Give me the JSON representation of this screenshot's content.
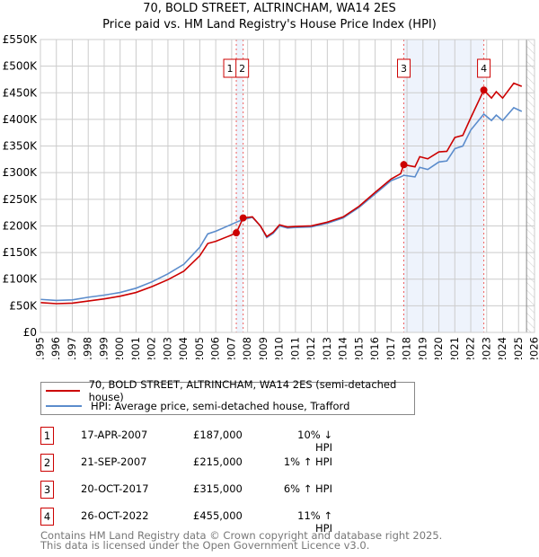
{
  "chart_data": {
    "type": "line",
    "title": "70, BOLD STREET, ALTRINCHAM, WA14 2ES",
    "subtitle": "Price paid vs. HM Land Registry's House Price Index (HPI)",
    "xlim": [
      1995,
      2026
    ],
    "ylim": [
      0,
      550000
    ],
    "x_ticks": [
      "1995",
      "1996",
      "1997",
      "1998",
      "1999",
      "2000",
      "2001",
      "2002",
      "2003",
      "2004",
      "2005",
      "2006",
      "2007",
      "2008",
      "2009",
      "2010",
      "2011",
      "2012",
      "2013",
      "2014",
      "2015",
      "2016",
      "2017",
      "2018",
      "2019",
      "2020",
      "2021",
      "2022",
      "2023",
      "2024",
      "2025",
      "2026"
    ],
    "y_ticks": [
      {
        "v": 0,
        "l": "£0"
      },
      {
        "v": 50000,
        "l": "£50K"
      },
      {
        "v": 100000,
        "l": "£100K"
      },
      {
        "v": 150000,
        "l": "£150K"
      },
      {
        "v": 200000,
        "l": "£200K"
      },
      {
        "v": 250000,
        "l": "£250K"
      },
      {
        "v": 300000,
        "l": "£300K"
      },
      {
        "v": 350000,
        "l": "£350K"
      },
      {
        "v": 400000,
        "l": "£400K"
      },
      {
        "v": 450000,
        "l": "£450K"
      },
      {
        "v": 500000,
        "l": "£500K"
      },
      {
        "v": 550000,
        "l": "£550K"
      }
    ],
    "grid": true,
    "series": [
      {
        "name": "70, BOLD STREET, ALTRINCHAM, WA14 2ES (semi-detached house)",
        "color": "#cc0000",
        "points": [
          [
            1995,
            56000
          ],
          [
            1996,
            54000
          ],
          [
            1997,
            55000
          ],
          [
            1998,
            59000
          ],
          [
            1999,
            63000
          ],
          [
            2000,
            68000
          ],
          [
            2001,
            75000
          ],
          [
            2002,
            86000
          ],
          [
            2003,
            99000
          ],
          [
            2004,
            115000
          ],
          [
            2005,
            144000
          ],
          [
            2005.5,
            167000
          ],
          [
            2006,
            171000
          ],
          [
            2007,
            183000
          ],
          [
            2007.29,
            187000
          ],
          [
            2007.72,
            215000
          ],
          [
            2008.3,
            217000
          ],
          [
            2008.8,
            200000
          ],
          [
            2009.2,
            180000
          ],
          [
            2009.6,
            188000
          ],
          [
            2010,
            202000
          ],
          [
            2010.5,
            198000
          ],
          [
            2011,
            199000
          ],
          [
            2012,
            200000
          ],
          [
            2013,
            207000
          ],
          [
            2014,
            217000
          ],
          [
            2015,
            237000
          ],
          [
            2016,
            263000
          ],
          [
            2017,
            288000
          ],
          [
            2017.6,
            298000
          ],
          [
            2017.8,
            315000
          ],
          [
            2018.5,
            311000
          ],
          [
            2018.8,
            330000
          ],
          [
            2019.3,
            326000
          ],
          [
            2020,
            339000
          ],
          [
            2020.5,
            340000
          ],
          [
            2021,
            366000
          ],
          [
            2021.5,
            370000
          ],
          [
            2022,
            403000
          ],
          [
            2022.82,
            455000
          ],
          [
            2023.3,
            440000
          ],
          [
            2023.6,
            452000
          ],
          [
            2024,
            440000
          ],
          [
            2024.7,
            468000
          ],
          [
            2025.2,
            462000
          ]
        ]
      },
      {
        "name": "HPI: Average price, semi-detached house, Trafford",
        "color": "#5b8ccc",
        "points": [
          [
            1995,
            62000
          ],
          [
            1996,
            60000
          ],
          [
            1997,
            61000
          ],
          [
            1998,
            66000
          ],
          [
            1999,
            70000
          ],
          [
            2000,
            75000
          ],
          [
            2001,
            83000
          ],
          [
            2002,
            95000
          ],
          [
            2003,
            110000
          ],
          [
            2004,
            128000
          ],
          [
            2005,
            160000
          ],
          [
            2005.5,
            185000
          ],
          [
            2006,
            190000
          ],
          [
            2007,
            203000
          ],
          [
            2007.29,
            207000
          ],
          [
            2007.72,
            212000
          ],
          [
            2008.3,
            216000
          ],
          [
            2008.8,
            200000
          ],
          [
            2009.2,
            178000
          ],
          [
            2009.6,
            186000
          ],
          [
            2010,
            200000
          ],
          [
            2010.5,
            196000
          ],
          [
            2011,
            197000
          ],
          [
            2012,
            198000
          ],
          [
            2013,
            205000
          ],
          [
            2014,
            215000
          ],
          [
            2015,
            235000
          ],
          [
            2016,
            260000
          ],
          [
            2017,
            285000
          ],
          [
            2017.6,
            292000
          ],
          [
            2017.8,
            295000
          ],
          [
            2018.5,
            292000
          ],
          [
            2018.8,
            310000
          ],
          [
            2019.3,
            306000
          ],
          [
            2020,
            320000
          ],
          [
            2020.5,
            322000
          ],
          [
            2021,
            345000
          ],
          [
            2021.5,
            350000
          ],
          [
            2022,
            380000
          ],
          [
            2022.82,
            410000
          ],
          [
            2023.3,
            398000
          ],
          [
            2023.6,
            408000
          ],
          [
            2024,
            398000
          ],
          [
            2024.7,
            422000
          ],
          [
            2025.2,
            415000
          ]
        ]
      }
    ],
    "sales": [
      {
        "id": "1",
        "year": 2007.29,
        "price": 187000
      },
      {
        "id": "2",
        "year": 2007.72,
        "price": 215000
      },
      {
        "id": "3",
        "year": 2017.8,
        "price": 315000
      },
      {
        "id": "4",
        "year": 2022.82,
        "price": 455000
      }
    ],
    "shaded": [
      [
        2007.29,
        2007.72
      ],
      [
        2017.8,
        2022.82
      ]
    ],
    "forecast_from": 2025.5
  },
  "legend": {
    "red": "70, BOLD STREET, ALTRINCHAM, WA14 2ES (semi-detached house)",
    "blue": "HPI: Average price, semi-detached house, Trafford"
  },
  "transactions": [
    {
      "id": "1",
      "date": "17-APR-2007",
      "price": "£187,000",
      "hpi": "10% ↓ HPI"
    },
    {
      "id": "2",
      "date": "21-SEP-2007",
      "price": "£215,000",
      "hpi": "1% ↑ HPI"
    },
    {
      "id": "3",
      "date": "20-OCT-2017",
      "price": "£315,000",
      "hpi": "6% ↑ HPI"
    },
    {
      "id": "4",
      "date": "26-OCT-2022",
      "price": "£455,000",
      "hpi": "11% ↑ HPI"
    }
  ],
  "footer": {
    "line1": "Contains HM Land Registry data © Crown copyright and database right 2025.",
    "line2": "This data is licensed under the Open Government Licence v3.0."
  }
}
